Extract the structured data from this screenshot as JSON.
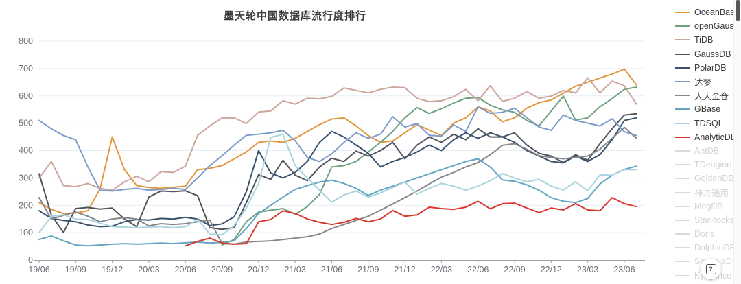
{
  "title": "墨天轮中国数据库流行度排行",
  "help_button": {
    "icon": "question-mark",
    "label": "?"
  },
  "axes": {
    "y_ticks": [
      0,
      100,
      200,
      300,
      400,
      500,
      600,
      700,
      800
    ],
    "x_tick_labels": [
      "19/06",
      "19/09",
      "19/12",
      "20/03",
      "20/06",
      "20/09",
      "20/12",
      "21/03",
      "21/06",
      "21/09",
      "21/12",
      "22/03",
      "22/06",
      "22/09",
      "22/12",
      "23/03",
      "23/06"
    ]
  },
  "colors": {
    "grid": "#e7edf6",
    "axis_line": "#9aa0a6",
    "tick_text": "#6b6f76",
    "title_text": "#3b3b3b",
    "disabled_text": "#d4d4d4"
  },
  "chart_data": {
    "type": "line",
    "title": "墨天轮中国数据库流行度排行",
    "xlabel": "",
    "ylabel": "",
    "ylim": [
      0,
      800
    ],
    "grid": true,
    "legend_position": "right",
    "x": [
      "19/06",
      "19/07",
      "19/08",
      "19/09",
      "19/10",
      "19/11",
      "19/12",
      "20/01",
      "20/02",
      "20/03",
      "20/04",
      "20/05",
      "20/06",
      "20/07",
      "20/08",
      "20/09",
      "20/10",
      "20/11",
      "20/12",
      "21/01",
      "21/02",
      "21/03",
      "21/04",
      "21/05",
      "21/06",
      "21/07",
      "21/08",
      "21/09",
      "21/10",
      "21/11",
      "21/12",
      "22/01",
      "22/02",
      "22/03",
      "22/04",
      "22/05",
      "22/06",
      "22/07",
      "22/08",
      "22/09",
      "22/10",
      "22/11",
      "22/12",
      "23/01",
      "23/02",
      "23/03",
      "23/04",
      "23/05",
      "23/06",
      "23/07"
    ],
    "series": [
      {
        "name": "OceanBase",
        "color": "#E2963A",
        "values": [
          210,
          185,
          170,
          172,
          180,
          260,
          450,
          330,
          272,
          265,
          262,
          266,
          270,
          330,
          335,
          345,
          370,
          395,
          430,
          435,
          430,
          445,
          470,
          495,
          515,
          520,
          490,
          455,
          430,
          435,
          465,
          495,
          475,
          455,
          500,
          520,
          560,
          545,
          505,
          520,
          555,
          575,
          585,
          610,
          635,
          650,
          665,
          680,
          698,
          640
        ]
      },
      {
        "name": "openGauss",
        "color": "#6FA17E",
        "values": [
          null,
          null,
          null,
          null,
          null,
          null,
          null,
          null,
          null,
          null,
          null,
          null,
          null,
          null,
          null,
          55,
          75,
          140,
          175,
          182,
          188,
          167,
          195,
          240,
          340,
          345,
          360,
          395,
          430,
          470,
          520,
          557,
          536,
          553,
          574,
          591,
          594,
          566,
          549,
          540,
          510,
          490,
          545,
          599,
          511,
          520,
          560,
          590,
          624,
          632
        ]
      },
      {
        "name": "TiDB",
        "color": "#CBA69D",
        "values": [
          300,
          360,
          272,
          268,
          280,
          262,
          255,
          286,
          306,
          286,
          323,
          320,
          343,
          456,
          490,
          519,
          520,
          499,
          541,
          545,
          582,
          570,
          591,
          589,
          598,
          629,
          620,
          611,
          624,
          632,
          630,
          591,
          579,
          582,
          597,
          624,
          582,
          637,
          580,
          591,
          616,
          591,
          599,
          620,
          611,
          666,
          611,
          654,
          637,
          570
        ]
      },
      {
        "name": "GaussDB",
        "color": "#50555D",
        "values": [
          315,
          165,
          100,
          188,
          192,
          186,
          190,
          150,
          122,
          230,
          252,
          250,
          253,
          235,
          118,
          112,
          118,
          210,
          312,
          295,
          365,
          310,
          290,
          340,
          372,
          360,
          398,
          380,
          400,
          430,
          370,
          420,
          450,
          430,
          460,
          440,
          480,
          450,
          450,
          465,
          420,
          390,
          380,
          356,
          385,
          365,
          425,
          480,
          530,
          535
        ]
      },
      {
        "name": "PolarDB",
        "color": "#3A526E",
        "values": [
          180,
          152,
          145,
          140,
          128,
          122,
          124,
          140,
          148,
          146,
          152,
          150,
          156,
          150,
          126,
          132,
          158,
          250,
          400,
          318,
          300,
          320,
          360,
          430,
          470,
          450,
          420,
          390,
          340,
          360,
          375,
          395,
          420,
          400,
          440,
          465,
          445,
          465,
          450,
          430,
          400,
          380,
          360,
          355,
          380,
          360,
          385,
          440,
          510,
          520
        ]
      },
      {
        "name": "达梦",
        "color": "#7E9CCB",
        "values": [
          510,
          480,
          455,
          440,
          340,
          255,
          252,
          258,
          262,
          255,
          258,
          262,
          258,
          300,
          345,
          381,
          420,
          456,
          460,
          465,
          474,
          436,
          375,
          360,
          388,
          430,
          465,
          445,
          460,
          524,
          486,
          499,
          456,
          453,
          494,
          470,
          560,
          536,
          540,
          555,
          520,
          486,
          474,
          530,
          510,
          500,
          490,
          516,
          469,
          455
        ]
      },
      {
        "name": "人大金仓",
        "color": "#85878A",
        "values": [
          228,
          150,
          163,
          175,
          160,
          140,
          150,
          155,
          150,
          125,
          133,
          130,
          133,
          140,
          146,
          60,
          58,
          66,
          68,
          70,
          75,
          80,
          85,
          95,
          115,
          130,
          145,
          160,
          182,
          205,
          228,
          252,
          278,
          303,
          320,
          340,
          356,
          385,
          419,
          425,
          405,
          381,
          375,
          370,
          375,
          380,
          405,
          445,
          485,
          445
        ]
      },
      {
        "name": "GBase",
        "color": "#62A5C2",
        "values": [
          75,
          88,
          70,
          55,
          52,
          55,
          58,
          60,
          58,
          60,
          62,
          60,
          63,
          66,
          62,
          65,
          70,
          115,
          170,
          200,
          230,
          258,
          272,
          285,
          292,
          280,
          262,
          236,
          255,
          270,
          285,
          300,
          315,
          330,
          345,
          360,
          370,
          340,
          293,
          288,
          275,
          255,
          228,
          215,
          210,
          225,
          278,
          310,
          331,
          343
        ]
      },
      {
        "name": "TDSQL",
        "color": "#A9D4DF",
        "values": [
          100,
          160,
          165,
          150,
          148,
          135,
          122,
          120,
          118,
          120,
          122,
          118,
          122,
          148,
          95,
          92,
          125,
          190,
          280,
          448,
          460,
          345,
          300,
          255,
          212,
          238,
          252,
          230,
          245,
          265,
          285,
          241,
          262,
          280,
          270,
          255,
          270,
          290,
          316,
          300,
          286,
          295,
          270,
          256,
          286,
          253,
          311,
          310,
          330,
          330
        ]
      },
      {
        "name": "AnalyticDB",
        "color": "#D8372E",
        "values": [
          null,
          null,
          null,
          null,
          null,
          null,
          null,
          null,
          null,
          null,
          null,
          null,
          52,
          68,
          80,
          62,
          58,
          60,
          140,
          148,
          180,
          170,
          150,
          138,
          130,
          138,
          152,
          140,
          150,
          181,
          160,
          165,
          193,
          188,
          185,
          193,
          215,
          187,
          206,
          208,
          190,
          173,
          190,
          183,
          206,
          183,
          180,
          228,
          206,
          195
        ]
      }
    ],
    "disabled_series": [
      "AntDB",
      "TDengine",
      "GoldenDB",
      "神舟通用",
      "MogDB",
      "StarRocks",
      "Doris",
      "DolphinDB",
      "SequoiaDB",
      "Kyligence"
    ]
  }
}
